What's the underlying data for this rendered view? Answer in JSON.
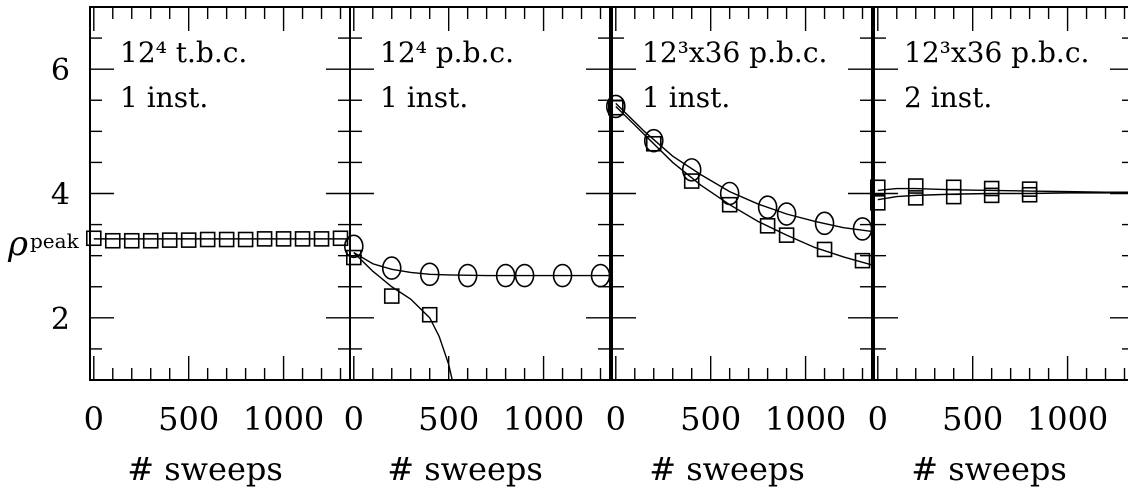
{
  "chart_data": {
    "type": "scatter",
    "ylabel": "ρ",
    "ylabel_subscript": "peak",
    "ylim": [
      1,
      7
    ],
    "yticks": [
      2,
      4,
      6
    ],
    "xlim": [
      -20,
      1350
    ],
    "xticks": [
      0,
      500,
      1000
    ],
    "xlabel": "# sweeps",
    "panels": [
      {
        "title_lines": [
          "12⁴ t.b.c.",
          "1 inst."
        ],
        "series": [
          {
            "marker": "square",
            "x": [
              0,
              100,
              200,
              300,
              400,
              500,
              600,
              700,
              800,
              900,
              1000,
              1100,
              1200,
              1300
            ],
            "y": [
              3.28,
              3.24,
              3.24,
              3.24,
              3.25,
              3.25,
              3.26,
              3.26,
              3.26,
              3.27,
              3.27,
              3.27,
              3.27,
              3.28
            ],
            "fit": {
              "x": [
                0,
                1350
              ],
              "y": [
                3.27,
                3.27
              ]
            }
          }
        ]
      },
      {
        "title_lines": [
          "12⁴ p.b.c.",
          "1 inst."
        ],
        "series": [
          {
            "marker": "circle",
            "x": [
              0,
              200,
              400,
              600,
              800,
              900,
              1100,
              1300
            ],
            "y": [
              3.15,
              2.8,
              2.7,
              2.68,
              2.68,
              2.68,
              2.68,
              2.68
            ],
            "fit": {
              "x": [
                0,
                100,
                200,
                300,
                400,
                500,
                700,
                900,
                1100,
                1350
              ],
              "y": [
                3.05,
                2.87,
                2.78,
                2.73,
                2.7,
                2.69,
                2.68,
                2.68,
                2.68,
                2.68
              ]
            }
          },
          {
            "marker": "square",
            "x": [
              0,
              200,
              400
            ],
            "y": [
              2.97,
              2.35,
              2.05
            ],
            "fit": {
              "x": [
                0,
                100,
                200,
                300,
                400,
                450,
                500,
                530
              ],
              "y": [
                3.05,
                2.75,
                2.5,
                2.3,
                2.0,
                1.7,
                1.25,
                0.85
              ]
            }
          }
        ]
      },
      {
        "title_lines": [
          "12³x36 p.b.c.",
          "1 inst."
        ],
        "series": [
          {
            "marker": "circle",
            "x": [
              0,
              200,
              400,
              600,
              800,
              900,
              1100,
              1300
            ],
            "y": [
              5.4,
              4.85,
              4.38,
              4.0,
              3.78,
              3.67,
              3.52,
              3.43
            ],
            "fit": {
              "x": [
                0,
                150,
                300,
                450,
                600,
                750,
                900,
                1050,
                1200,
                1350
              ],
              "y": [
                5.45,
                5.0,
                4.6,
                4.3,
                4.03,
                3.83,
                3.67,
                3.55,
                3.45,
                3.39
              ]
            }
          },
          {
            "marker": "square",
            "x": [
              0,
              200,
              400,
              600,
              800,
              900,
              1100,
              1300
            ],
            "y": [
              5.38,
              4.8,
              4.2,
              3.82,
              3.48,
              3.33,
              3.1,
              2.92
            ],
            "fit": {
              "x": [
                0,
                150,
                300,
                450,
                600,
                750,
                900,
                1050,
                1200,
                1350
              ],
              "y": [
                5.4,
                4.95,
                4.5,
                4.13,
                3.82,
                3.55,
                3.33,
                3.13,
                2.98,
                2.85
              ]
            }
          }
        ]
      },
      {
        "title_lines": [
          "12³x36 p.b.c.",
          "2 inst."
        ],
        "series": [
          {
            "marker": "square",
            "x": [
              0,
              200,
              400,
              600,
              800
            ],
            "y": [
              4.1,
              4.12,
              4.1,
              4.08,
              4.07
            ],
            "fit": {
              "x": [
                0,
                100,
                200,
                300,
                400,
                600,
                800,
                1000,
                1200,
                1350
              ],
              "y": [
                4.05,
                4.08,
                4.08,
                4.07,
                4.06,
                4.05,
                4.04,
                4.03,
                4.02,
                4.02
              ]
            }
          },
          {
            "marker": "square",
            "x": [
              0,
              200,
              400,
              600,
              800
            ],
            "y": [
              3.85,
              3.93,
              3.95,
              3.97,
              3.98
            ],
            "fit": {
              "x": [
                0,
                100,
                200,
                300,
                400,
                600,
                800,
                1000,
                1200,
                1350
              ],
              "y": [
                3.9,
                3.95,
                3.97,
                3.98,
                3.99,
                4.0,
                4.0,
                4.01,
                4.01,
                4.02
              ]
            }
          }
        ]
      }
    ]
  }
}
